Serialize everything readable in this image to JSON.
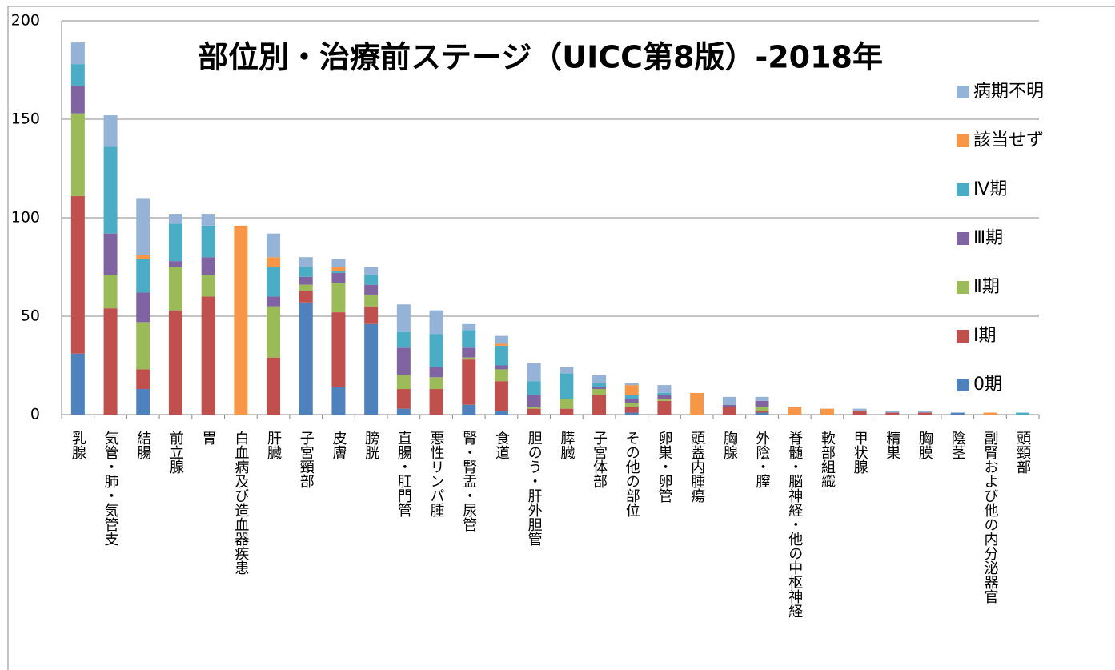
{
  "chart_data": {
    "type": "bar",
    "stacked": true,
    "title": "部位別・治療前ステージ（UICC第8版）-2018年",
    "categories": [
      "乳腺",
      "気管・肺・気管支",
      "結腸",
      "前立腺",
      "胃",
      "白血病及び造血器疾患",
      "肝臓",
      "子宮頸部",
      "皮膚",
      "膀胱",
      "直腸・肛門管",
      "悪性リンパ腫",
      "腎・腎盂・尿管",
      "食道",
      "胆のう・肝外胆管",
      "膵臓",
      "子宮体部",
      "その他の部位",
      "卵巣・卵管",
      "頭蓋内腫瘍",
      "胸腺",
      "外陰・膣",
      "脊髄・脳神経・他の中枢神経",
      "軟部組織",
      "甲状腺",
      "精巣",
      "胸膜",
      "陰茎",
      "副腎および他の内分泌器官",
      "頭頸部"
    ],
    "series": [
      {
        "name": "0期",
        "color": "#4f81bd",
        "values": [
          31,
          0,
          13,
          0,
          0,
          0,
          0,
          57,
          14,
          46,
          3,
          0,
          5,
          2,
          0,
          0,
          0,
          1,
          0,
          0,
          0,
          1,
          0,
          0,
          0,
          0,
          0,
          1,
          0,
          0
        ]
      },
      {
        "name": "Ⅰ期",
        "color": "#c0504d",
        "values": [
          80,
          54,
          10,
          53,
          60,
          0,
          29,
          6,
          38,
          9,
          10,
          13,
          23,
          15,
          3,
          3,
          10,
          3,
          7,
          0,
          4,
          1,
          0,
          0,
          2,
          1,
          1,
          0,
          0,
          0
        ]
      },
      {
        "name": "Ⅱ期",
        "color": "#9bbb59",
        "values": [
          42,
          17,
          24,
          22,
          11,
          0,
          26,
          3,
          15,
          6,
          7,
          6,
          1,
          6,
          1,
          5,
          3,
          2,
          1,
          0,
          0,
          2,
          0,
          0,
          0,
          0,
          0,
          0,
          0,
          0
        ]
      },
      {
        "name": "Ⅲ期",
        "color": "#8064a2",
        "values": [
          14,
          21,
          15,
          3,
          9,
          0,
          5,
          4,
          5,
          5,
          14,
          5,
          5,
          2,
          6,
          0,
          1,
          2,
          2,
          0,
          1,
          3,
          0,
          0,
          0,
          0,
          0,
          0,
          0,
          0
        ]
      },
      {
        "name": "Ⅳ期",
        "color": "#4bacc6",
        "values": [
          11,
          44,
          17,
          19,
          16,
          0,
          15,
          5,
          1,
          5,
          8,
          17,
          9,
          10,
          7,
          13,
          2,
          2,
          1,
          0,
          0,
          0,
          0,
          0,
          0,
          0,
          0,
          0,
          0,
          1
        ]
      },
      {
        "name": "該当せず",
        "color": "#f79646",
        "values": [
          0,
          0,
          2,
          0,
          0,
          96,
          5,
          0,
          2,
          0,
          0,
          0,
          0,
          1,
          0,
          0,
          0,
          5,
          0,
          11,
          0,
          0,
          4,
          3,
          0,
          0,
          0,
          0,
          1,
          0
        ]
      },
      {
        "name": "病期不明",
        "color": "#95b3d7",
        "values": [
          11,
          16,
          29,
          5,
          6,
          0,
          12,
          5,
          4,
          4,
          14,
          12,
          3,
          4,
          9,
          3,
          4,
          1,
          4,
          0,
          4,
          2,
          0,
          0,
          1,
          1,
          1,
          0,
          0,
          0
        ]
      }
    ],
    "ylim": [
      0,
      200
    ],
    "yticks": [
      0,
      50,
      100,
      150,
      200
    ],
    "grid": true,
    "legend": "right"
  }
}
